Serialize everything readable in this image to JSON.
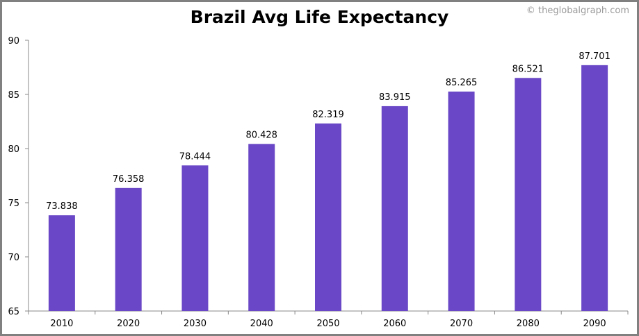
{
  "chart_data": {
    "type": "bar",
    "title": "Brazil Avg Life Expectancy",
    "watermark": "© theglobalgraph.com",
    "categories": [
      "2010",
      "2020",
      "2030",
      "2040",
      "2050",
      "2060",
      "2070",
      "2080",
      "2090"
    ],
    "values": [
      73.838,
      76.358,
      78.444,
      80.428,
      82.319,
      83.915,
      85.265,
      86.521,
      87.701
    ],
    "value_labels": [
      "73.838",
      "76.358",
      "78.444",
      "80.428",
      "82.319",
      "83.915",
      "85.265",
      "86.521",
      "87.701"
    ],
    "xlabel": "",
    "ylabel": "",
    "ylim": [
      65,
      90
    ],
    "yticks": [
      65,
      70,
      75,
      80,
      85,
      90
    ],
    "grid": false,
    "bar_color": "#6a47c6"
  }
}
